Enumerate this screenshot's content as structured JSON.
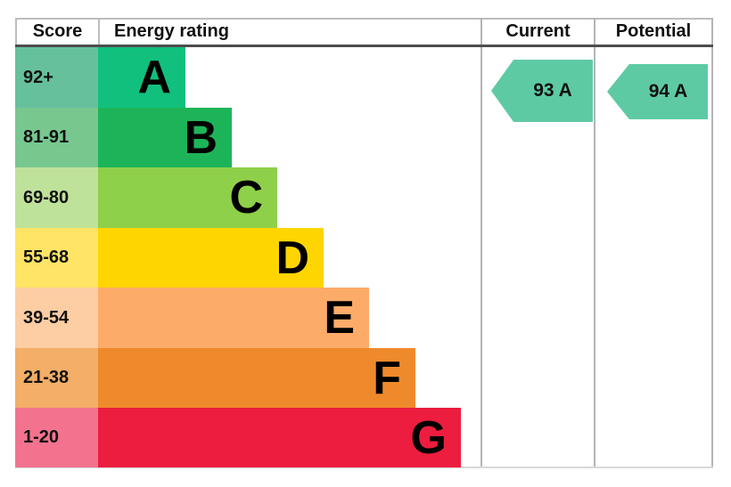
{
  "header": {
    "score": "Score",
    "energy_rating": "Energy rating",
    "current": "Current",
    "potential": "Potential"
  },
  "rows": [
    {
      "score": "92+",
      "letter": "A",
      "bar_color": "#11c07d",
      "score_cell_color": "#66c09b"
    },
    {
      "score": "81-91",
      "letter": "B",
      "bar_color": "#1db459",
      "score_cell_color": "#77c78f"
    },
    {
      "score": "69-80",
      "letter": "C",
      "bar_color": "#8ed04a",
      "score_cell_color": "#bfe29a"
    },
    {
      "score": "55-68",
      "letter": "D",
      "bar_color": "#ffd500",
      "score_cell_color": "#ffe465"
    },
    {
      "score": "39-54",
      "letter": "E",
      "bar_color": "#fcab69",
      "score_cell_color": "#fdcda3"
    },
    {
      "score": "21-38",
      "letter": "F",
      "bar_color": "#ef8a2c",
      "score_cell_color": "#f3ae67"
    },
    {
      "score": "1-20",
      "letter": "G",
      "bar_color": "#ec1d3f",
      "score_cell_color": "#f3738e"
    }
  ],
  "current": {
    "label": "93 A",
    "arrow_color": "#5ecaa4"
  },
  "potential": {
    "label": "94 A",
    "arrow_color": "#5ecaa4"
  },
  "chart_data": {
    "type": "bar",
    "orientation": "horizontal",
    "title": "Energy rating",
    "columns": [
      "Score",
      "Energy rating",
      "Current",
      "Potential"
    ],
    "categories": [
      "A",
      "B",
      "C",
      "D",
      "E",
      "F",
      "G"
    ],
    "score_bands": [
      "92+",
      "81-91",
      "69-80",
      "55-68",
      "39-54",
      "21-38",
      "1-20"
    ],
    "bar_length_rank": [
      1,
      2,
      3,
      4,
      5,
      6,
      7
    ],
    "band_colors": [
      "#11c07d",
      "#1db459",
      "#8ed04a",
      "#ffd500",
      "#fcab69",
      "#ef8a2c",
      "#ec1d3f"
    ],
    "current": {
      "score": 93,
      "rating": "A"
    },
    "potential": {
      "score": 94,
      "rating": "A"
    },
    "legend": "none",
    "grid": false
  }
}
